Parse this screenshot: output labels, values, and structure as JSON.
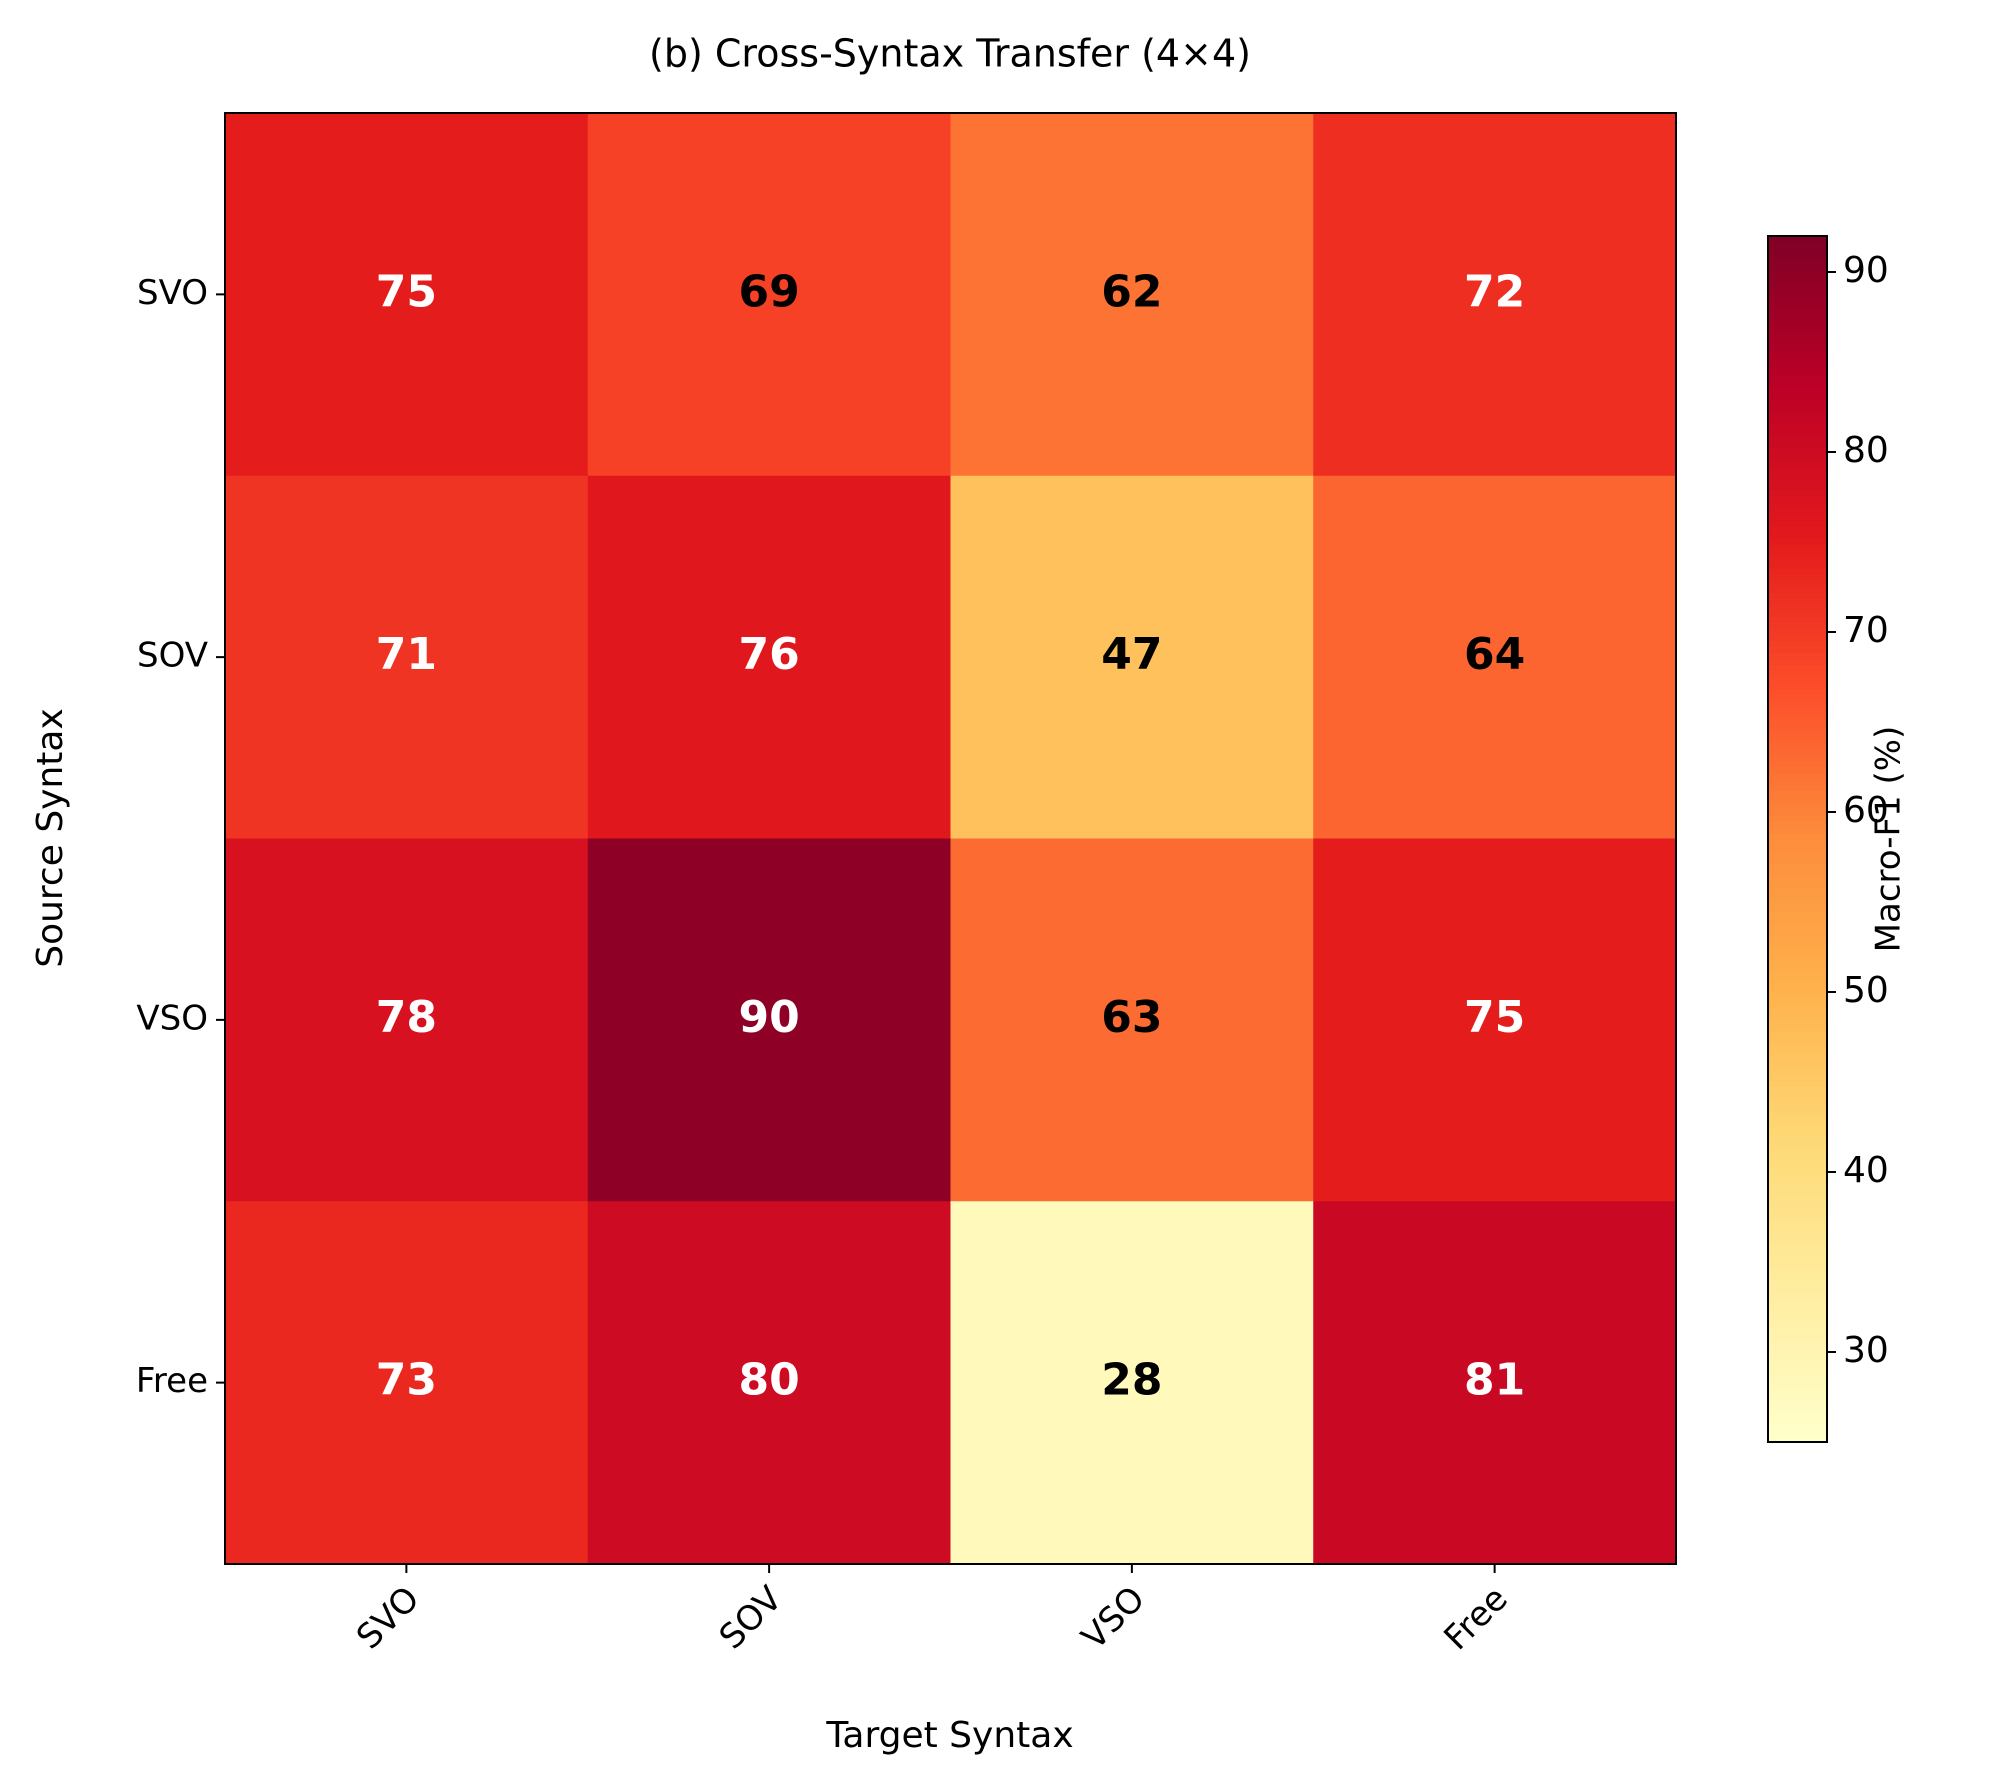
{
  "chart_data": {
    "type": "heatmap",
    "title": "(b) Cross-Syntax Transfer (4×4)",
    "xlabel": "Target Syntax",
    "ylabel": "Source Syntax",
    "x": [
      "SVO",
      "SOV",
      "VSO",
      "Free"
    ],
    "y": [
      "SVO",
      "SOV",
      "VSO",
      "Free"
    ],
    "values": [
      [
        75,
        69,
        62,
        72
      ],
      [
        71,
        76,
        47,
        64
      ],
      [
        78,
        90,
        63,
        75
      ],
      [
        73,
        80,
        28,
        81
      ]
    ],
    "colorbar_label": "Macro-F1 (%)",
    "clim": [
      25,
      92
    ],
    "cticks": [
      30,
      40,
      50,
      60,
      70,
      80,
      90
    ],
    "colormap": [
      "#ffffcc",
      "#ffeda0",
      "#fed976",
      "#feb24c",
      "#fd8d3c",
      "#fc4e2a",
      "#e31a1c",
      "#bd0026",
      "#800026"
    ]
  }
}
